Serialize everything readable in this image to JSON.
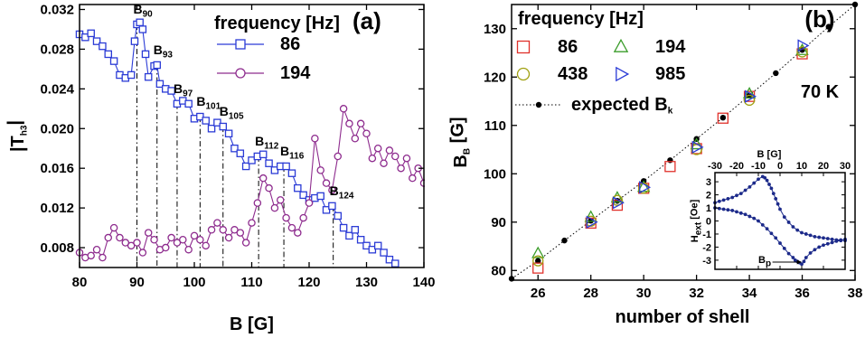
{
  "chart_data": [
    {
      "type": "line",
      "panel_label": "(a)",
      "xlabel": "B [G]",
      "ylabel": "|T",
      "ylabel_sub": "h3",
      "ylabel_tail": "|",
      "xlim": [
        80,
        140
      ],
      "ylim": [
        0.006,
        0.0325
      ],
      "xticks": [
        "80",
        "90",
        "100",
        "110",
        "120",
        "130",
        "140"
      ],
      "xtick_values": [
        80,
        90,
        100,
        110,
        120,
        130,
        140
      ],
      "yticks": [
        "0.008",
        "0.012",
        "0.016",
        "0.020",
        "0.024",
        "0.028",
        "0.032"
      ],
      "ytick_values": [
        0.008,
        0.012,
        0.016,
        0.02,
        0.024,
        0.028,
        0.032
      ],
      "legend_title": "frequency [Hz]",
      "series": [
        {
          "name": "86",
          "color": "#2b3bd6",
          "marker": "square",
          "x": [
            80,
            81,
            82,
            83,
            84,
            85,
            86,
            87,
            88,
            89,
            89.6,
            90,
            90.5,
            91,
            91.5,
            92,
            93,
            93.5,
            94,
            95,
            96,
            97,
            98,
            99,
            100,
            101,
            102,
            103,
            104,
            105,
            106,
            107,
            108,
            109,
            110,
            111,
            112,
            113,
            114,
            115,
            116,
            117,
            118,
            119,
            120,
            121,
            122,
            123,
            124,
            125,
            126,
            127,
            128,
            129,
            130,
            131,
            132,
            133,
            134,
            135
          ],
          "y": [
            0.0295,
            0.0292,
            0.0296,
            0.0288,
            0.0283,
            0.0275,
            0.0268,
            0.0254,
            0.0251,
            0.0254,
            0.0288,
            0.0305,
            0.0307,
            0.03,
            0.0275,
            0.0252,
            0.0263,
            0.0264,
            0.0245,
            0.024,
            0.0238,
            0.0225,
            0.0228,
            0.0225,
            0.021,
            0.0212,
            0.0208,
            0.02,
            0.0206,
            0.0202,
            0.0195,
            0.018,
            0.0175,
            0.0162,
            0.0168,
            0.0172,
            0.0174,
            0.0165,
            0.0158,
            0.0162,
            0.0162,
            0.0155,
            0.014,
            0.0133,
            0.0128,
            0.013,
            0.0132,
            0.0118,
            0.0122,
            0.0112,
            0.01,
            0.0092,
            0.0098,
            0.0088,
            0.0082,
            0.0078,
            0.0082,
            0.0075,
            0.0068,
            0.0064
          ]
        },
        {
          "name": "194",
          "color": "#8e2c8e",
          "marker": "circle",
          "x": [
            80,
            81,
            82,
            83,
            84,
            85,
            86,
            87,
            88,
            89,
            90,
            91,
            92,
            93,
            94,
            95,
            96,
            97,
            98,
            99,
            100,
            101,
            102,
            103,
            104,
            105,
            106,
            107,
            108,
            109,
            110,
            111,
            112,
            113,
            114,
            115,
            116,
            117,
            118,
            119,
            120,
            121,
            122,
            123,
            124,
            125,
            126,
            127,
            128,
            129,
            130,
            131,
            132,
            133,
            134,
            135,
            136,
            137,
            138,
            139,
            140
          ],
          "y": [
            0.0075,
            0.007,
            0.0072,
            0.0078,
            0.007,
            0.009,
            0.01,
            0.009,
            0.0085,
            0.0082,
            0.0085,
            0.0075,
            0.0095,
            0.0088,
            0.0078,
            0.008,
            0.009,
            0.0085,
            0.0088,
            0.0078,
            0.0092,
            0.0088,
            0.0082,
            0.0098,
            0.0105,
            0.0098,
            0.009,
            0.0098,
            0.0095,
            0.0085,
            0.0105,
            0.0125,
            0.015,
            0.014,
            0.012,
            0.0128,
            0.011,
            0.01,
            0.0095,
            0.011,
            0.0125,
            0.019,
            0.0158,
            0.0145,
            0.0138,
            0.0172,
            0.022,
            0.0205,
            0.019,
            0.0205,
            0.0195,
            0.017,
            0.018,
            0.0165,
            0.0178,
            0.0172,
            0.016,
            0.017,
            0.015,
            0.016,
            0.0145
          ]
        }
      ],
      "annotations": [
        {
          "label": "B",
          "sub": "90",
          "x": 90
        },
        {
          "label": "B",
          "sub": "93",
          "x": 93.5
        },
        {
          "label": "B",
          "sub": "97",
          "x": 97
        },
        {
          "label": "B",
          "sub": "101",
          "x": 101
        },
        {
          "label": "B",
          "sub": "105",
          "x": 105
        },
        {
          "label": "B",
          "sub": "112",
          "x": 111.2
        },
        {
          "label": "B",
          "sub": "116",
          "x": 115.6
        },
        {
          "label": "B",
          "sub": "124",
          "x": 124.2
        }
      ]
    },
    {
      "type": "scatter",
      "panel_label": "(b)",
      "xlabel": "number of shell",
      "ylabel": "B",
      "ylabel_sub": "B",
      "ylabel_tail": " [G]",
      "xlim": [
        25,
        38
      ],
      "ylim": [
        78,
        135
      ],
      "xticks": [
        "26",
        "28",
        "30",
        "32",
        "34",
        "36",
        "38"
      ],
      "xtick_values": [
        26,
        28,
        30,
        32,
        34,
        36,
        38
      ],
      "yticks": [
        "80",
        "90",
        "100",
        "110",
        "120",
        "130"
      ],
      "ytick_values": [
        80,
        90,
        100,
        110,
        120,
        130
      ],
      "legend_title": "frequency [Hz]",
      "temperature_label": "70 K",
      "expected": {
        "name": "expected B",
        "name_sub": "k",
        "x": [
          25,
          26,
          27,
          28,
          29,
          30,
          31,
          32,
          33,
          34,
          35,
          36,
          37,
          38
        ],
        "y": [
          78.3,
          82.0,
          86.2,
          90.3,
          94.4,
          98.5,
          102.8,
          107.2,
          111.6,
          116.2,
          120.8,
          125.6,
          130.4,
          135.0
        ]
      },
      "series": [
        {
          "name": "86",
          "color": "#e0312b",
          "marker": "square",
          "x": [
            26,
            28,
            29,
            30,
            31,
            32,
            33,
            34,
            36
          ],
          "y": [
            80.5,
            89.8,
            93.5,
            97.0,
            101.5,
            105.2,
            111.5,
            116.0,
            124.8
          ]
        },
        {
          "name": "194",
          "color": "#3a9c2a",
          "marker": "triangle",
          "x": [
            26,
            28,
            29,
            30,
            32,
            34,
            36
          ],
          "y": [
            83.5,
            91.0,
            95.0,
            97.2,
            106.0,
            116.5,
            125.5
          ]
        },
        {
          "name": "438",
          "color": "#a0a010",
          "marker": "circle",
          "x": [
            26,
            28,
            29,
            30,
            32,
            34,
            36
          ],
          "y": [
            82.0,
            90.2,
            94.5,
            97.0,
            105.0,
            115.2,
            125.2
          ]
        },
        {
          "name": "985",
          "color": "#2b3bd6",
          "marker": "triangle-right",
          "x": [
            28,
            29,
            30,
            32,
            34,
            36
          ],
          "y": [
            90.0,
            94.0,
            97.2,
            105.5,
            116.0,
            126.5
          ]
        }
      ]
    },
    {
      "type": "line",
      "panel_label": "inset",
      "xlabel": "B [G]",
      "ylabel": "H",
      "ylabel_sub": "ext",
      "ylabel_tail": " [Oe]",
      "xlim": [
        -30,
        30
      ],
      "ylim": [
        -3.7,
        3.7
      ],
      "xticks": [
        "-30",
        "-20",
        "-10",
        "0",
        "10",
        "20",
        "30"
      ],
      "xtick_values": [
        -30,
        -20,
        -10,
        0,
        10,
        20,
        30
      ],
      "yticks": [
        "-3",
        "-2",
        "-1",
        "0",
        "1",
        "2",
        "3"
      ],
      "ytick_values": [
        -3,
        -2,
        -1,
        0,
        1,
        2,
        3
      ],
      "annotation": {
        "label": "B",
        "sub": "p"
      },
      "series": [
        {
          "name": "upper",
          "color": "#1c2a8a",
          "x": [
            -30,
            -28,
            -26,
            -24,
            -22,
            -20,
            -18,
            -16,
            -14,
            -12,
            -10,
            -8,
            -7,
            -6,
            -5,
            -4,
            -3,
            -2,
            -1,
            0,
            2,
            4,
            6,
            8,
            10,
            12,
            14,
            16,
            18,
            20,
            22,
            24,
            26,
            28,
            30
          ],
          "y": [
            1.4,
            1.5,
            1.6,
            1.7,
            1.8,
            1.95,
            2.1,
            2.35,
            2.6,
            2.9,
            3.2,
            3.4,
            3.3,
            3.1,
            2.8,
            2.5,
            2.1,
            1.7,
            1.3,
            0.9,
            0.3,
            -0.1,
            -0.45,
            -0.7,
            -0.9,
            -1.0,
            -1.1,
            -1.2,
            -1.25,
            -1.3,
            -1.35,
            -1.4,
            -1.45,
            -1.45,
            -1.5
          ]
        },
        {
          "name": "lower",
          "color": "#1c2a8a",
          "x": [
            -30,
            -28,
            -26,
            -24,
            -22,
            -20,
            -18,
            -16,
            -14,
            -12,
            -10,
            -8,
            -6,
            -4,
            -2,
            0,
            2,
            4,
            6,
            7,
            8,
            9,
            10,
            11,
            12,
            14,
            16,
            18,
            20,
            22,
            24,
            26,
            28,
            30
          ],
          "y": [
            1.0,
            0.95,
            0.9,
            0.85,
            0.8,
            0.7,
            0.6,
            0.5,
            0.35,
            0.2,
            0.0,
            -0.3,
            -0.6,
            -0.95,
            -1.3,
            -1.7,
            -2.1,
            -2.5,
            -2.8,
            -3.0,
            -3.1,
            -3.2,
            -3.3,
            -3.1,
            -2.8,
            -2.45,
            -2.2,
            -2.0,
            -1.85,
            -1.75,
            -1.65,
            -1.55,
            -1.5,
            -1.4
          ]
        }
      ]
    }
  ]
}
